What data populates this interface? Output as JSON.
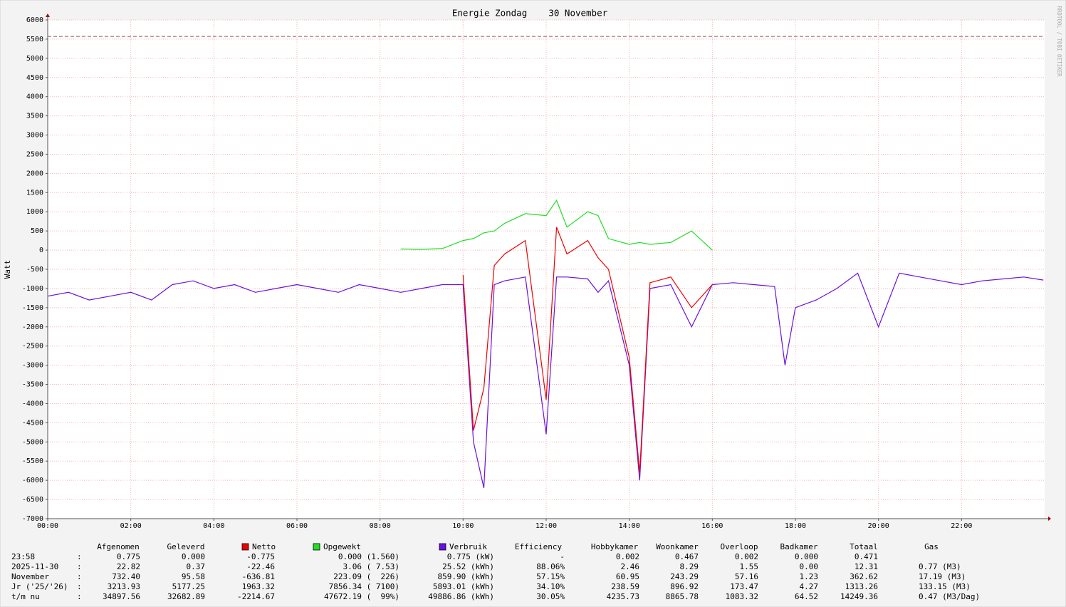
{
  "chart_data": {
    "type": "line",
    "title": "Energie Zondag    30 November",
    "y_label": "Watt",
    "watermark": "RRDTOOL / TOBI OETIKER",
    "x": [
      0,
      0.5,
      1,
      1.5,
      2,
      2.5,
      3,
      3.5,
      4,
      4.5,
      5,
      5.5,
      6,
      6.5,
      7,
      7.5,
      8,
      8.5,
      9,
      9.5,
      10,
      10.25,
      10.5,
      10.75,
      11,
      11.5,
      12,
      12.25,
      12.5,
      13,
      13.25,
      13.5,
      14,
      14.25,
      14.5,
      15,
      15.5,
      16,
      16.5,
      17,
      17.5,
      17.75,
      18,
      18.5,
      19,
      19.5,
      20,
      20.5,
      21,
      21.5,
      22,
      22.5,
      23,
      23.5,
      23.97
    ],
    "series": [
      {
        "name": "Netto",
        "color": "#ee0000",
        "values": [
          null,
          null,
          null,
          null,
          null,
          null,
          null,
          null,
          null,
          null,
          null,
          null,
          null,
          null,
          null,
          null,
          null,
          null,
          null,
          null,
          -650,
          -4700,
          -3600,
          -400,
          -100,
          250,
          -3900,
          600,
          -100,
          250,
          -200,
          -500,
          -2800,
          -5800,
          -850,
          -700,
          -1500,
          -900,
          null,
          null,
          null,
          null,
          null,
          null,
          null,
          null,
          null,
          null,
          null,
          null,
          null,
          null,
          null,
          null,
          null
        ]
      },
      {
        "name": "Opgewekt",
        "color": "#22dd22",
        "values": [
          null,
          null,
          null,
          null,
          null,
          null,
          null,
          null,
          null,
          null,
          null,
          null,
          null,
          null,
          null,
          null,
          null,
          30,
          20,
          40,
          250,
          300,
          450,
          500,
          700,
          950,
          900,
          1300,
          600,
          1000,
          900,
          300,
          150,
          200,
          150,
          200,
          500,
          0,
          null,
          null,
          null,
          null,
          null,
          null,
          null,
          null,
          null,
          null,
          null,
          null,
          null,
          null,
          null,
          null,
          null
        ]
      },
      {
        "name": "Verbruik",
        "color": "#6a10e0",
        "values": [
          -1200,
          -1100,
          -1300,
          -1200,
          -1100,
          -1300,
          -900,
          -800,
          -1000,
          -900,
          -1100,
          -1000,
          -900,
          -1000,
          -1100,
          -900,
          -1000,
          -1100,
          -1000,
          -900,
          -900,
          -5000,
          -6200,
          -900,
          -800,
          -700,
          -4800,
          -700,
          -700,
          -750,
          -1100,
          -800,
          -3000,
          -6000,
          -1000,
          -900,
          -2000,
          -900,
          -850,
          -900,
          -950,
          -3000,
          -1500,
          -1300,
          -1000,
          -600,
          -2000,
          -600,
          -700,
          -800,
          -900,
          -800,
          -750,
          -700,
          -780
        ]
      }
    ],
    "xlim": [
      0,
      24
    ],
    "xticks": [
      {
        "value": 0,
        "label": "00:00"
      },
      {
        "value": 2,
        "label": "02:00"
      },
      {
        "value": 4,
        "label": "04:00"
      },
      {
        "value": 6,
        "label": "06:00"
      },
      {
        "value": 8,
        "label": "08:00"
      },
      {
        "value": 10,
        "label": "10:00"
      },
      {
        "value": 12,
        "label": "12:00"
      },
      {
        "value": 14,
        "label": "14:00"
      },
      {
        "value": 16,
        "label": "16:00"
      },
      {
        "value": 18,
        "label": "18:00"
      },
      {
        "value": 20,
        "label": "20:00"
      },
      {
        "value": 22,
        "label": "22:00"
      }
    ],
    "ylim": [
      -7000,
      6000
    ],
    "yticks": [
      -7000,
      -6500,
      -6000,
      -5500,
      -5000,
      -4500,
      -4000,
      -3500,
      -3000,
      -2500,
      -2000,
      -1500,
      -1000,
      -500,
      0,
      500,
      1000,
      1500,
      2000,
      2500,
      3000,
      3500,
      4000,
      4500,
      5000,
      5500,
      6000
    ],
    "hline": {
      "value": 5570,
      "color": "#995555"
    },
    "grid": true
  },
  "table": {
    "headers": [
      "Afgenomen",
      "Geleverd",
      "Efficiency",
      "Hobbykamer",
      "Woonkamer",
      "Overloop",
      "Badkamer",
      "Totaal",
      "Gas"
    ],
    "rows": [
      {
        "label": "23:58",
        "separator": ":",
        "cells": [
          "0.775",
          "0.000",
          "-0.775",
          "0.000 (1.560)",
          "0.775 (kW)",
          "-",
          "0.002",
          "0.467",
          "0.002",
          "0.000",
          "0.471"
        ]
      },
      {
        "label": "2025-11-30",
        "separator": ":",
        "cells": [
          "22.82",
          "0.37",
          "-22.46",
          "3.06 ( 7.53)",
          "25.52 (kWh)",
          "88.06%",
          "2.46",
          "8.29",
          "1.55",
          "0.00",
          "12.31",
          "0.77 (M3)"
        ]
      },
      {
        "label": "November",
        "separator": ":",
        "cells": [
          "732.40",
          "95.58",
          "-636.81",
          "223.09 (  226)",
          "859.90 (kWh)",
          "57.15%",
          "60.95",
          "243.29",
          "57.16",
          "1.23",
          "362.62",
          "17.19 (M3)"
        ]
      },
      {
        "label": "Jr ('25/'26)",
        "separator": ":",
        "cells": [
          "3213.93",
          "5177.25",
          "1963.32",
          "7856.34 ( 7100)",
          "5893.01 (kWh)",
          "34.10%",
          "238.59",
          "896.92",
          "173.47",
          "4.27",
          "1313.26",
          "133.15 (M3)"
        ]
      },
      {
        "label": "t/m nu",
        "separator": ":",
        "cells": [
          "34897.56",
          "32682.89",
          "-2214.67",
          "47672.19 (  99%)",
          "49886.86 (kWh)",
          "30.05%",
          "4235.73",
          "8865.78",
          "1083.32",
          "64.52",
          "14249.36",
          "0.47 (M3/Dag)"
        ]
      }
    ]
  }
}
